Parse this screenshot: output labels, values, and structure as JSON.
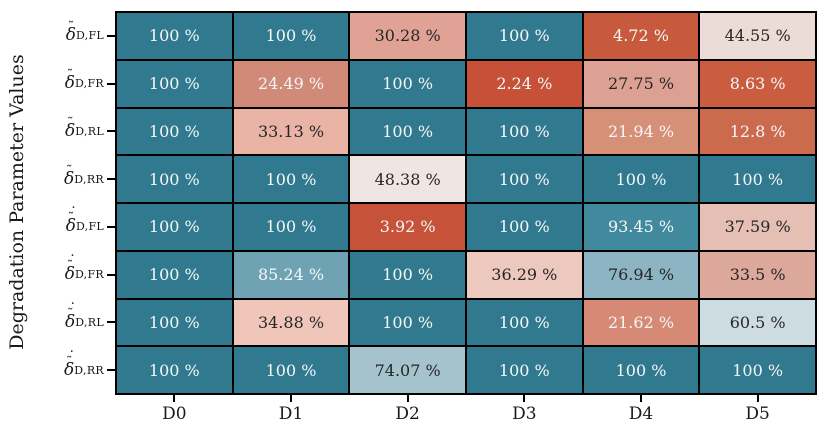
{
  "chart_data": {
    "type": "heatmap",
    "title": "",
    "xlabel": "",
    "ylabel": "Degradation Parameter Values",
    "x_categories": [
      "D0",
      "D1",
      "D2",
      "D3",
      "D4",
      "D5"
    ],
    "y_categories": [
      {
        "display": "δ̃_D,FL",
        "base": "δ",
        "accents": [
          "tilde"
        ],
        "subscript": "D,FL"
      },
      {
        "display": "δ̃_D,FR",
        "base": "δ",
        "accents": [
          "tilde"
        ],
        "subscript": "D,FR"
      },
      {
        "display": "δ̃_D,RL",
        "base": "δ",
        "accents": [
          "tilde"
        ],
        "subscript": "D,RL"
      },
      {
        "display": "δ̃_D,RR",
        "base": "δ",
        "accents": [
          "tilde"
        ],
        "subscript": "D,RR"
      },
      {
        "display": "δ̇̃_D,FL",
        "base": "δ",
        "accents": [
          "tilde",
          "dot"
        ],
        "subscript": "D,FL"
      },
      {
        "display": "δ̇̃_D,FR",
        "base": "δ",
        "accents": [
          "tilde",
          "dot"
        ],
        "subscript": "D,FR"
      },
      {
        "display": "δ̇̃_D,RL",
        "base": "δ",
        "accents": [
          "tilde",
          "dot"
        ],
        "subscript": "D,RL"
      },
      {
        "display": "δ̇̃_D,RR",
        "base": "δ",
        "accents": [
          "tilde",
          "dot"
        ],
        "subscript": "D,RR"
      }
    ],
    "values": [
      [
        100,
        100,
        30.28,
        100,
        4.72,
        44.55
      ],
      [
        100,
        24.49,
        100,
        2.24,
        27.75,
        8.63
      ],
      [
        100,
        33.13,
        100,
        100,
        21.94,
        12.8
      ],
      [
        100,
        100,
        48.38,
        100,
        100,
        100
      ],
      [
        100,
        100,
        3.92,
        100,
        93.45,
        37.59
      ],
      [
        100,
        85.24,
        100,
        36.29,
        76.94,
        33.5
      ],
      [
        100,
        34.88,
        100,
        100,
        21.62,
        60.5
      ],
      [
        100,
        100,
        74.07,
        100,
        100,
        100
      ]
    ],
    "cell_labels": [
      [
        "100 %",
        "100 %",
        "30.28 %",
        "100 %",
        "4.72 %",
        "44.55 %"
      ],
      [
        "100 %",
        "24.49 %",
        "100 %",
        "2.24 %",
        "27.75 %",
        "8.63 %"
      ],
      [
        "100 %",
        "33.13 %",
        "100 %",
        "100 %",
        "21.94 %",
        "12.8 %"
      ],
      [
        "100 %",
        "100 %",
        "48.38 %",
        "100 %",
        "100 %",
        "100 %"
      ],
      [
        "100 %",
        "100 %",
        "3.92 %",
        "100 %",
        "93.45 %",
        "37.59 %"
      ],
      [
        "100 %",
        "85.24 %",
        "100 %",
        "36.29 %",
        "76.94 %",
        "33.5 %"
      ],
      [
        "100 %",
        "34.88 %",
        "100 %",
        "100 %",
        "21.62 %",
        "60.5 %"
      ],
      [
        "100 %",
        "100 %",
        "74.07 %",
        "100 %",
        "100 %",
        "100 %"
      ]
    ],
    "cell_colors": [
      [
        "#30798f",
        "#30798f",
        "#dfa294",
        "#30798f",
        "#c7593d",
        "#ecdcd8"
      ],
      [
        "#30798f",
        "#d08a77",
        "#30798f",
        "#c65138",
        "#dca192",
        "#ca5c40"
      ],
      [
        "#30798f",
        "#e9b3a6",
        "#30798f",
        "#30798f",
        "#d69077",
        "#cc6a4e"
      ],
      [
        "#30798f",
        "#30798f",
        "#efe5e2",
        "#30798f",
        "#30798f",
        "#30798f"
      ],
      [
        "#30798f",
        "#30798f",
        "#c65339",
        "#30798f",
        "#418a9e",
        "#e5beb4"
      ],
      [
        "#30798f",
        "#6fa3b4",
        "#30798f",
        "#edc8be",
        "#8cb4c2",
        "#dba89b"
      ],
      [
        "#30798f",
        "#f0c6bb",
        "#30798f",
        "#30798f",
        "#d68a76",
        "#ccdce1"
      ],
      [
        "#30798f",
        "#30798f",
        "#a5c3cc",
        "#30798f",
        "#30798f",
        "#30798f"
      ]
    ],
    "cell_text_tones": [
      [
        "light",
        "light",
        "dark",
        "light",
        "light",
        "dark"
      ],
      [
        "light",
        "light",
        "light",
        "light",
        "dark",
        "light"
      ],
      [
        "light",
        "dark",
        "light",
        "light",
        "light",
        "light"
      ],
      [
        "light",
        "light",
        "dark",
        "light",
        "light",
        "light"
      ],
      [
        "light",
        "light",
        "light",
        "light",
        "light",
        "dark"
      ],
      [
        "light",
        "light",
        "light",
        "dark",
        "dark",
        "dark"
      ],
      [
        "light",
        "dark",
        "light",
        "light",
        "light",
        "dark"
      ],
      [
        "light",
        "light",
        "dark",
        "light",
        "light",
        "light"
      ]
    ],
    "colors": {
      "high": "#30798f",
      "mid": "#efe5e2",
      "low": "#c65138",
      "grid_line": "#000000",
      "text_light": "#f5f7f7",
      "text_dark": "#262626",
      "axis_text": "#1a1a1a",
      "background": "#ffffff"
    },
    "value_range": [
      0,
      100
    ],
    "legend": "none",
    "grid": "cell-borders"
  }
}
